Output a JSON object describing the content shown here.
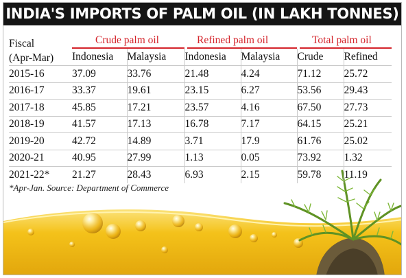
{
  "title": "INDIA'S IMPORTS OF PALM OIL (IN LAKH TONNES)",
  "footnote": "*Apr-Jan. Source: Department of Commerce",
  "table": {
    "fiscal_header_line1": "Fiscal",
    "fiscal_header_line2": "(Apr-Mar)",
    "groups": [
      "Crude palm oil",
      "Refined palm oil",
      "Total palm oil"
    ],
    "subheaders": [
      "Indonesia",
      "Malaysia",
      "Indonesia",
      "Malaysia",
      "Crude",
      "Refined"
    ]
  },
  "chart_data": {
    "type": "table",
    "title": "INDIA'S IMPORTS OF PALM OIL (IN LAKH TONNES)",
    "columns": [
      "Fiscal (Apr-Mar)",
      "Crude palm oil - Indonesia",
      "Crude palm oil - Malaysia",
      "Refined palm oil - Indonesia",
      "Refined palm oil - Malaysia",
      "Total palm oil - Crude",
      "Total palm oil - Refined"
    ],
    "rows": [
      [
        "2015-16",
        "37.09",
        "33.76",
        "21.48",
        "4.24",
        "71.12",
        "25.72"
      ],
      [
        "2016-17",
        "33.37",
        "19.61",
        "23.15",
        "6.27",
        "53.56",
        "29.43"
      ],
      [
        "2017-18",
        "45.85",
        "17.21",
        "23.57",
        "4.16",
        "67.50",
        "27.73"
      ],
      [
        "2018-19",
        "41.57",
        "17.13",
        "16.78",
        "7.17",
        "64.15",
        "25.21"
      ],
      [
        "2019-20",
        "42.72",
        "14.89",
        "3.71",
        "17.9",
        "61.76",
        "25.02"
      ],
      [
        "2020-21",
        "40.95",
        "27.99",
        "1.13",
        "0.05",
        "73.92",
        "1.32"
      ],
      [
        "2021-22*",
        "21.27",
        "28.43",
        "6.93",
        "2.15",
        "59.78",
        "11.19"
      ]
    ]
  },
  "colors": {
    "title_bg": "#151515",
    "group_label": "#d4232a",
    "oil": "#f2c41c",
    "palm": "#6a9a2c"
  },
  "icons": [
    "oil-bubbles-illustration",
    "palm-tree-illustration"
  ]
}
